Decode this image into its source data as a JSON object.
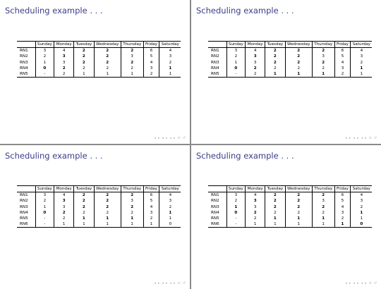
{
  "slides": [
    {
      "title": "Scheduling example . . .",
      "headers": [
        "Sunday",
        "Monday",
        "Tuesday",
        "Wednesday",
        "Thursday",
        "Friday",
        "Saturday"
      ],
      "rows": [
        {
          "label": "RN1",
          "cells": [
            {
              "v": "3",
              "b": false
            },
            {
              "v": "4",
              "b": false
            },
            {
              "v": "2",
              "b": true
            },
            {
              "v": "2",
              "b": true
            },
            {
              "v": "2",
              "b": true
            },
            {
              "v": "6",
              "b": false
            },
            {
              "v": "4",
              "b": false
            }
          ]
        },
        {
          "label": "RN2",
          "cells": [
            {
              "v": "2",
              "b": false
            },
            {
              "v": "3",
              "b": true
            },
            {
              "v": "2",
              "b": true
            },
            {
              "v": "2",
              "b": true
            },
            {
              "v": "3",
              "b": false
            },
            {
              "v": "5",
              "b": false
            },
            {
              "v": "3",
              "b": false
            }
          ]
        },
        {
          "label": "RN3",
          "cells": [
            {
              "v": "1",
              "b": false
            },
            {
              "v": "3",
              "b": false
            },
            {
              "v": "2",
              "b": true
            },
            {
              "v": "2",
              "b": true
            },
            {
              "v": "2",
              "b": true
            },
            {
              "v": "4",
              "b": false
            },
            {
              "v": "2",
              "b": false
            }
          ]
        },
        {
          "label": "RN4",
          "cells": [
            {
              "v": "0",
              "b": true
            },
            {
              "v": "2",
              "b": true
            },
            {
              "v": "2",
              "b": false
            },
            {
              "v": "2",
              "b": false
            },
            {
              "v": "2",
              "b": false
            },
            {
              "v": "3",
              "b": false
            },
            {
              "v": "1",
              "b": true
            }
          ]
        },
        {
          "label": "RN5",
          "cells": [
            {
              "v": "-",
              "b": false
            },
            {
              "v": "2",
              "b": false
            },
            {
              "v": "1",
              "b": false
            },
            {
              "v": "1",
              "b": false
            },
            {
              "v": "1",
              "b": false
            },
            {
              "v": "2",
              "b": false
            },
            {
              "v": "1",
              "b": false
            }
          ]
        }
      ]
    },
    {
      "title": "Scheduling example . . .",
      "headers": [
        "Sunday",
        "Monday",
        "Tuesday",
        "Wednesday",
        "Thursday",
        "Friday",
        "Saturday"
      ],
      "rows": [
        {
          "label": "RN1",
          "cells": [
            {
              "v": "3",
              "b": false
            },
            {
              "v": "4",
              "b": false
            },
            {
              "v": "2",
              "b": true
            },
            {
              "v": "2",
              "b": true
            },
            {
              "v": "2",
              "b": true
            },
            {
              "v": "6",
              "b": false
            },
            {
              "v": "4",
              "b": false
            }
          ]
        },
        {
          "label": "RN2",
          "cells": [
            {
              "v": "2",
              "b": false
            },
            {
              "v": "3",
              "b": true
            },
            {
              "v": "2",
              "b": true
            },
            {
              "v": "2",
              "b": true
            },
            {
              "v": "3",
              "b": false
            },
            {
              "v": "5",
              "b": false
            },
            {
              "v": "3",
              "b": false
            }
          ]
        },
        {
          "label": "RN3",
          "cells": [
            {
              "v": "1",
              "b": false
            },
            {
              "v": "3",
              "b": false
            },
            {
              "v": "2",
              "b": true
            },
            {
              "v": "2",
              "b": true
            },
            {
              "v": "2",
              "b": true
            },
            {
              "v": "4",
              "b": false
            },
            {
              "v": "2",
              "b": false
            }
          ]
        },
        {
          "label": "RN4",
          "cells": [
            {
              "v": "0",
              "b": true
            },
            {
              "v": "2",
              "b": true
            },
            {
              "v": "2",
              "b": false
            },
            {
              "v": "2",
              "b": false
            },
            {
              "v": "2",
              "b": false
            },
            {
              "v": "3",
              "b": false
            },
            {
              "v": "1",
              "b": true
            }
          ]
        },
        {
          "label": "RN5",
          "cells": [
            {
              "v": "-",
              "b": false
            },
            {
              "v": "2",
              "b": false
            },
            {
              "v": "1",
              "b": true
            },
            {
              "v": "1",
              "b": true
            },
            {
              "v": "1",
              "b": true
            },
            {
              "v": "2",
              "b": false
            },
            {
              "v": "1",
              "b": false
            }
          ]
        }
      ]
    },
    {
      "title": "Scheduling example . . .",
      "headers": [
        "Sunday",
        "Monday",
        "Tuesday",
        "Wednesday",
        "Thursday",
        "Friday",
        "Saturday"
      ],
      "rows": [
        {
          "label": "RN1",
          "cells": [
            {
              "v": "3",
              "b": false
            },
            {
              "v": "4",
              "b": false
            },
            {
              "v": "2",
              "b": true
            },
            {
              "v": "2",
              "b": true
            },
            {
              "v": "2",
              "b": true
            },
            {
              "v": "6",
              "b": false
            },
            {
              "v": "4",
              "b": false
            }
          ]
        },
        {
          "label": "RN2",
          "cells": [
            {
              "v": "2",
              "b": false
            },
            {
              "v": "3",
              "b": true
            },
            {
              "v": "2",
              "b": true
            },
            {
              "v": "2",
              "b": true
            },
            {
              "v": "3",
              "b": false
            },
            {
              "v": "5",
              "b": false
            },
            {
              "v": "3",
              "b": false
            }
          ]
        },
        {
          "label": "RN3",
          "cells": [
            {
              "v": "1",
              "b": false
            },
            {
              "v": "3",
              "b": false
            },
            {
              "v": "2",
              "b": true
            },
            {
              "v": "2",
              "b": true
            },
            {
              "v": "2",
              "b": true
            },
            {
              "v": "4",
              "b": false
            },
            {
              "v": "2",
              "b": false
            }
          ]
        },
        {
          "label": "RN4",
          "cells": [
            {
              "v": "0",
              "b": true
            },
            {
              "v": "2",
              "b": true
            },
            {
              "v": "2",
              "b": false
            },
            {
              "v": "2",
              "b": false
            },
            {
              "v": "2",
              "b": false
            },
            {
              "v": "3",
              "b": false
            },
            {
              "v": "1",
              "b": true
            }
          ]
        },
        {
          "label": "RN5",
          "cells": [
            {
              "v": "-",
              "b": false
            },
            {
              "v": "2",
              "b": false
            },
            {
              "v": "1",
              "b": true
            },
            {
              "v": "1",
              "b": true
            },
            {
              "v": "1",
              "b": true
            },
            {
              "v": "2",
              "b": false
            },
            {
              "v": "1",
              "b": false
            }
          ]
        },
        {
          "label": "RN6",
          "cells": [
            {
              "v": "-",
              "b": false
            },
            {
              "v": "1",
              "b": false
            },
            {
              "v": "1",
              "b": false
            },
            {
              "v": "1",
              "b": false
            },
            {
              "v": "1",
              "b": false
            },
            {
              "v": "1",
              "b": false
            },
            {
              "v": "0",
              "b": false
            }
          ]
        }
      ]
    },
    {
      "title": "Scheduling example . . .",
      "headers": [
        "Sunday",
        "Monday",
        "Tuesday",
        "Wednesday",
        "Thursday",
        "Friday",
        "Saturday"
      ],
      "rows": [
        {
          "label": "RN1",
          "cells": [
            {
              "v": "3",
              "b": false
            },
            {
              "v": "4",
              "b": false
            },
            {
              "v": "2",
              "b": true
            },
            {
              "v": "2",
              "b": true
            },
            {
              "v": "2",
              "b": true
            },
            {
              "v": "6",
              "b": false
            },
            {
              "v": "4",
              "b": false
            }
          ]
        },
        {
          "label": "RN2",
          "cells": [
            {
              "v": "2",
              "b": false
            },
            {
              "v": "3",
              "b": true
            },
            {
              "v": "2",
              "b": true
            },
            {
              "v": "2",
              "b": true
            },
            {
              "v": "3",
              "b": false
            },
            {
              "v": "5",
              "b": false
            },
            {
              "v": "3",
              "b": false
            }
          ]
        },
        {
          "label": "RN3",
          "cells": [
            {
              "v": "1",
              "b": true
            },
            {
              "v": "3",
              "b": false
            },
            {
              "v": "2",
              "b": true
            },
            {
              "v": "2",
              "b": true
            },
            {
              "v": "2",
              "b": true
            },
            {
              "v": "4",
              "b": false
            },
            {
              "v": "2",
              "b": false
            }
          ]
        },
        {
          "label": "RN4",
          "cells": [
            {
              "v": "0",
              "b": true
            },
            {
              "v": "2",
              "b": true
            },
            {
              "v": "2",
              "b": false
            },
            {
              "v": "2",
              "b": false
            },
            {
              "v": "2",
              "b": false
            },
            {
              "v": "3",
              "b": false
            },
            {
              "v": "1",
              "b": true
            }
          ]
        },
        {
          "label": "RN5",
          "cells": [
            {
              "v": "-",
              "b": false
            },
            {
              "v": "2",
              "b": false
            },
            {
              "v": "1",
              "b": true
            },
            {
              "v": "1",
              "b": true
            },
            {
              "v": "1",
              "b": true
            },
            {
              "v": "2",
              "b": false
            },
            {
              "v": "1",
              "b": false
            }
          ]
        },
        {
          "label": "RN6",
          "cells": [
            {
              "v": "-",
              "b": false
            },
            {
              "v": "1",
              "b": false
            },
            {
              "v": "1",
              "b": false
            },
            {
              "v": "1",
              "b": false
            },
            {
              "v": "1",
              "b": false
            },
            {
              "v": "1",
              "b": true
            },
            {
              "v": "0",
              "b": true
            }
          ]
        }
      ]
    }
  ],
  "navigation": {
    "icons": [
      "nav-first-icon",
      "nav-prev-icon",
      "nav-section-prev-icon",
      "nav-section-next-icon",
      "nav-subsection-icon",
      "nav-frame-icon",
      "nav-search-icon",
      "nav-back-icon"
    ],
    "glyphs": [
      "◂",
      "▸",
      "◂",
      "▸",
      "◂",
      "▸",
      "≡",
      "↺"
    ]
  }
}
